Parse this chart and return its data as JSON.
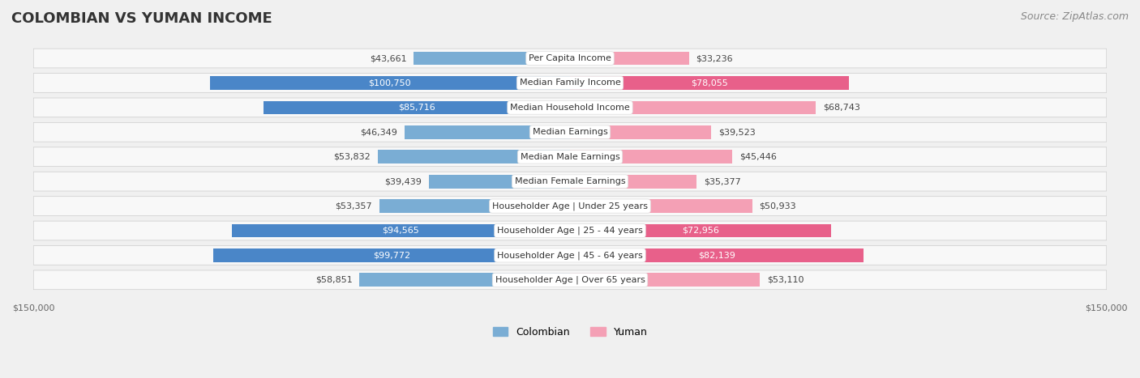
{
  "title": "COLOMBIAN VS YUMAN INCOME",
  "source": "Source: ZipAtlas.com",
  "categories": [
    "Per Capita Income",
    "Median Family Income",
    "Median Household Income",
    "Median Earnings",
    "Median Male Earnings",
    "Median Female Earnings",
    "Householder Age | Under 25 years",
    "Householder Age | 25 - 44 years",
    "Householder Age | 45 - 64 years",
    "Householder Age | Over 65 years"
  ],
  "colombian_values": [
    43661,
    100750,
    85716,
    46349,
    53832,
    39439,
    53357,
    94565,
    99772,
    58851
  ],
  "yuman_values": [
    33236,
    78055,
    68743,
    39523,
    45446,
    35377,
    50933,
    72956,
    82139,
    53110
  ],
  "colombian_labels": [
    "$43,661",
    "$100,750",
    "$85,716",
    "$46,349",
    "$53,832",
    "$39,439",
    "$53,357",
    "$94,565",
    "$99,772",
    "$58,851"
  ],
  "yuman_labels": [
    "$33,236",
    "$78,055",
    "$68,743",
    "$39,523",
    "$45,446",
    "$35,377",
    "$50,933",
    "$72,956",
    "$82,139",
    "$53,110"
  ],
  "max_value": 150000,
  "colombian_color": "#7aadd4",
  "colombian_dark_color": "#4a86c8",
  "yuman_color": "#f4a0b5",
  "yuman_dark_color": "#e8608a",
  "bg_color": "#f0f0f0",
  "row_bg_color": "#f8f8f8",
  "label_bg_color": "#ffffff",
  "title_fontsize": 13,
  "source_fontsize": 9,
  "bar_label_fontsize": 8,
  "category_fontsize": 8,
  "axis_label_fontsize": 8
}
